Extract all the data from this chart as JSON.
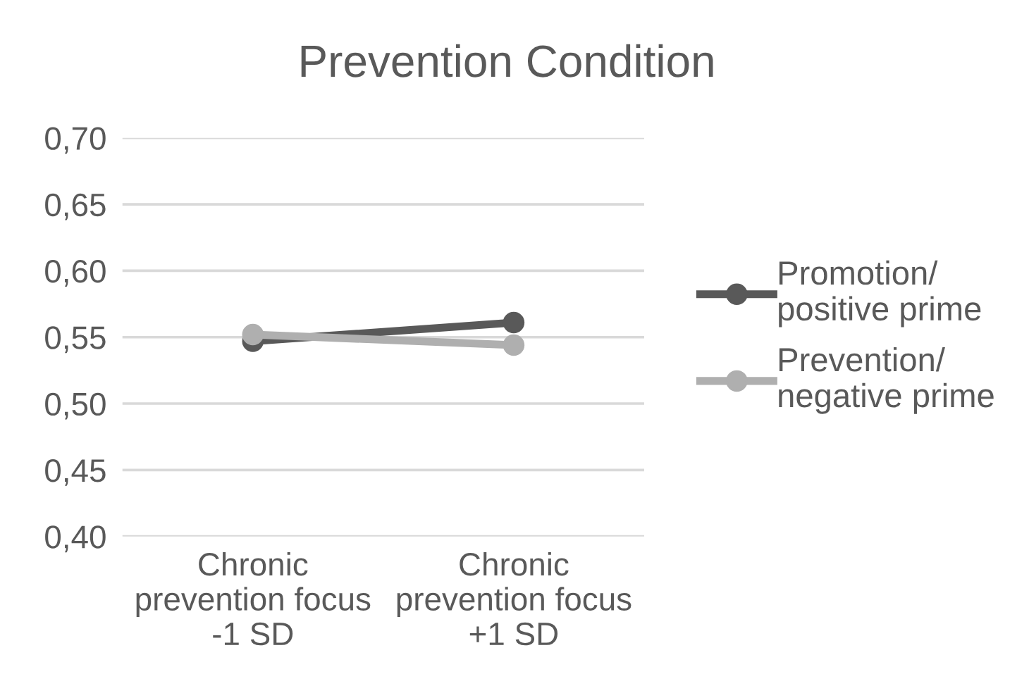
{
  "chart_data": {
    "type": "line",
    "title": "Prevention Condition",
    "categories": [
      "Chronic\nprevention focus\n-1 SD",
      "Chronic\nprevention focus\n+1 SD"
    ],
    "series": [
      {
        "name": "Promotion/\npositive prime",
        "color": "#595959",
        "values": [
          0.547,
          0.561
        ]
      },
      {
        "name": "Prevention/\nnegative prime",
        "color": "#afafaf",
        "values": [
          0.552,
          0.544
        ]
      }
    ],
    "ylim": [
      0.4,
      0.7
    ],
    "yticks": [
      {
        "value": 0.4,
        "label": "0,40"
      },
      {
        "value": 0.45,
        "label": "0,45"
      },
      {
        "value": 0.5,
        "label": "0,50"
      },
      {
        "value": 0.55,
        "label": "0,55"
      },
      {
        "value": 0.6,
        "label": "0,60"
      },
      {
        "value": 0.65,
        "label": "0,65"
      },
      {
        "value": 0.7,
        "label": "0,70"
      }
    ],
    "grid": "y",
    "legend": "right",
    "marker": "circle",
    "line_style": "solid"
  }
}
